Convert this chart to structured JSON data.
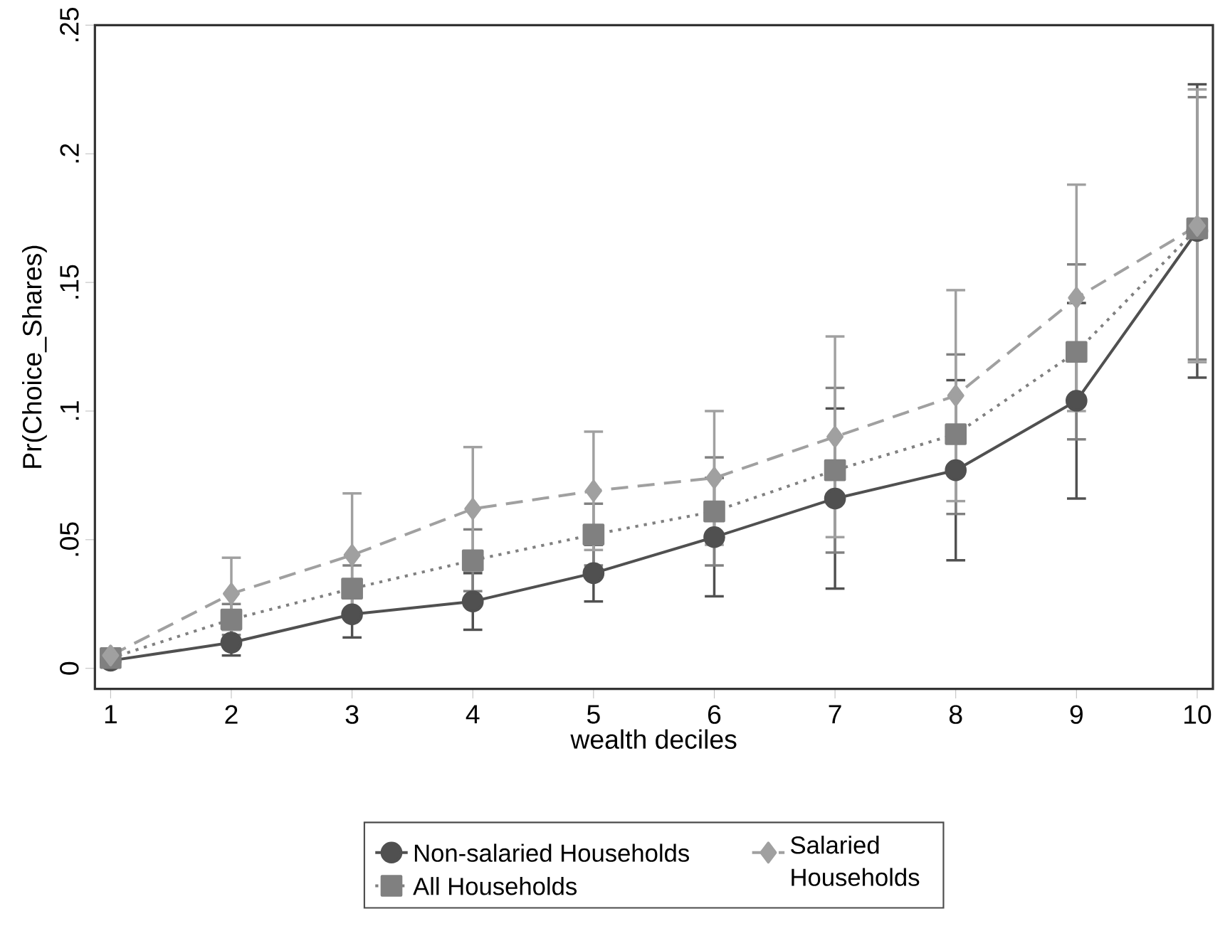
{
  "chart_data": {
    "type": "line",
    "xlabel": "wealth deciles",
    "ylabel": "Pr(Choice_Shares)",
    "x": [
      1,
      2,
      3,
      4,
      5,
      6,
      7,
      8,
      9,
      10
    ],
    "xlim": [
      0.87,
      10.13
    ],
    "xticks": [
      1,
      2,
      3,
      4,
      5,
      6,
      7,
      8,
      9,
      10
    ],
    "ylim": [
      -0.008,
      0.25
    ],
    "yticks": [
      0,
      {
        "value": 0.05,
        "label": ".05"
      },
      {
        "value": 0.1,
        "label": ".1"
      },
      {
        "value": 0.15,
        "label": ".15"
      },
      {
        "value": 0.2,
        "label": ".2"
      },
      {
        "value": 0.25,
        "label": ".25"
      }
    ],
    "grid": false,
    "legend": "bottom",
    "series": [
      {
        "name": "Non-salaried Households",
        "color": "#505050",
        "marker": "circle",
        "line_style": "solid",
        "values": [
          0.003,
          0.01,
          0.021,
          0.026,
          0.037,
          0.051,
          0.066,
          0.077,
          0.104,
          0.17
        ],
        "errors": [
          0.002,
          0.005,
          0.009,
          0.011,
          0.011,
          0.023,
          0.035,
          0.035,
          0.038,
          0.057
        ]
      },
      {
        "name": "All Households",
        "color": "#808080",
        "marker": "square",
        "line_style": "dotted",
        "values": [
          0.004,
          0.019,
          0.031,
          0.042,
          0.052,
          0.061,
          0.077,
          0.091,
          0.123,
          0.171
        ],
        "errors": [
          0.002,
          0.006,
          0.009,
          0.012,
          0.012,
          0.021,
          0.032,
          0.031,
          0.034,
          0.051
        ]
      },
      {
        "name": "Salaried Households",
        "color": "#a0a0a0",
        "marker": "diamond",
        "line_style": "dashed",
        "values": [
          0.005,
          0.029,
          0.044,
          0.062,
          0.069,
          0.074,
          0.09,
          0.106,
          0.144,
          0.172
        ],
        "errors": [
          0.002,
          0.014,
          0.024,
          0.024,
          0.023,
          0.026,
          0.039,
          0.041,
          0.044,
          0.053
        ]
      }
    ]
  }
}
